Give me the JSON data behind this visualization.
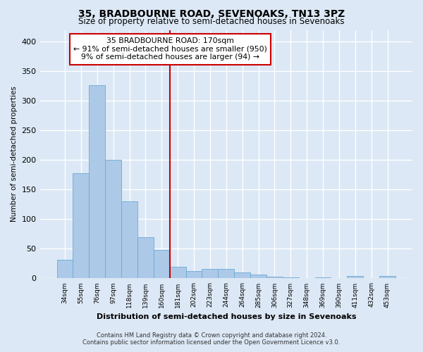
{
  "title1": "35, BRADBOURNE ROAD, SEVENOAKS, TN13 3PZ",
  "title2": "Size of property relative to semi-detached houses in Sevenoaks",
  "xlabel": "Distribution of semi-detached houses by size in Sevenoaks",
  "ylabel": "Number of semi-detached properties",
  "categories": [
    "34sqm",
    "55sqm",
    "76sqm",
    "97sqm",
    "118sqm",
    "139sqm",
    "160sqm",
    "181sqm",
    "202sqm",
    "223sqm",
    "244sqm",
    "264sqm",
    "285sqm",
    "306sqm",
    "327sqm",
    "348sqm",
    "369sqm",
    "390sqm",
    "411sqm",
    "432sqm",
    "453sqm"
  ],
  "values": [
    32,
    178,
    326,
    200,
    130,
    70,
    48,
    20,
    12,
    16,
    16,
    10,
    6,
    3,
    2,
    0,
    2,
    0,
    4,
    0,
    4
  ],
  "bar_color": "#adc9e8",
  "bar_edge_color": "#6aaad4",
  "annotation_title": "35 BRADBOURNE ROAD: 170sqm",
  "annotation_line1": "← 91% of semi-detached houses are smaller (950)",
  "annotation_line2": "9% of semi-detached houses are larger (94) →",
  "annotation_box_color": "#ffffff",
  "annotation_box_edge": "#cc0000",
  "vline_color": "#cc0000",
  "vline_x": 7.0,
  "ylim": [
    0,
    420
  ],
  "yticks": [
    0,
    50,
    100,
    150,
    200,
    250,
    300,
    350,
    400
  ],
  "background_color": "#dce8f5",
  "grid_color": "#ffffff",
  "footer1": "Contains HM Land Registry data © Crown copyright and database right 2024.",
  "footer2": "Contains public sector information licensed under the Open Government Licence v3.0."
}
